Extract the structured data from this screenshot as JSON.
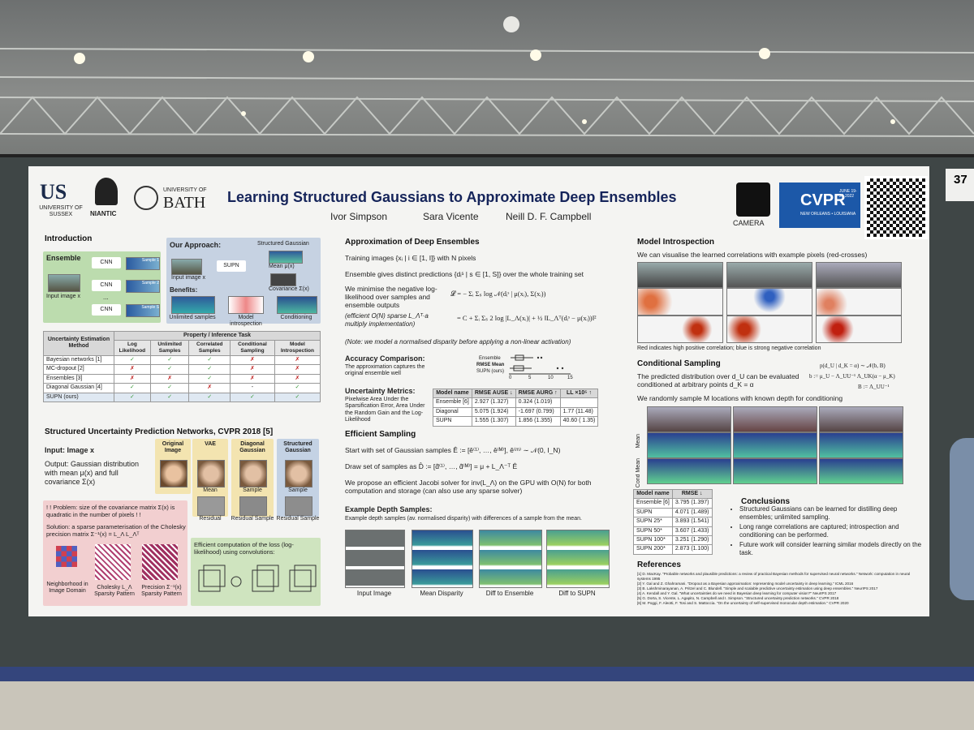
{
  "header": {
    "logos": {
      "sussex_mark": "US",
      "sussex": "UNIVERSITY OF SUSSEX",
      "niantic": "NIANTIC",
      "bath_top": "UNIVERSITY OF",
      "bath": "BATH",
      "camera": "CAMERA",
      "cvpr": "CVPR",
      "cvpr_date": "JUNE 19-24 2022",
      "cvpr_place": "NEW ORLEANS • LOUISIANA"
    },
    "title": "Learning Structured Gaussians to Approximate Deep Ensembles",
    "authors": [
      "Ivor Simpson",
      "Sara Vicente",
      "Neill D. F. Campbell"
    ],
    "booth": "37"
  },
  "introduction": {
    "heading": "Introduction",
    "ensemble": {
      "label": "Ensemble",
      "cnn": [
        "CNN",
        "CNN",
        "CNN"
      ],
      "samples": [
        "Sample 1",
        "Sample 2",
        "Sample S"
      ],
      "dots": "...",
      "input": "Input image x"
    },
    "approach": {
      "label": "Our Approach:",
      "structured": "Structured  Gaussian",
      "input": "Input image x",
      "supn": "SUPN",
      "mean": "Mean μ(x)",
      "cov": "Covariance Σ(x)",
      "benefits": "Benefits:",
      "items": [
        "Unlimited samples",
        "Model introspection",
        "Conditioning"
      ]
    },
    "table": {
      "corner": "Uncertainty Estimation Method",
      "group": "Property / Inference Task",
      "columns": [
        "Log Likelihood",
        "Unlimited Samples",
        "Correlated Samples",
        "Conditional Sampling",
        "Model Introspection"
      ],
      "rows": [
        [
          "Bayesian networks [1]",
          "✓",
          "✓",
          "✓",
          "✗",
          "✗"
        ],
        [
          "MC-dropout [2]",
          "✗",
          "✓",
          "✓",
          "✗",
          "✗"
        ],
        [
          "Ensembles [3]",
          "✗",
          "✗",
          "✓",
          "✗",
          "✗"
        ],
        [
          "Diagonal Gaussian [4]",
          "✓",
          "✓",
          "✗",
          "-",
          "✓"
        ],
        [
          "SUPN (ours)",
          "✓",
          "✓",
          "✓",
          "✓",
          "✓"
        ]
      ]
    }
  },
  "supn": {
    "heading": "Structured Uncertainty Prediction Networks, CVPR 2018 [5]",
    "input": "Input: Image x",
    "output": "Output: Gaussian distribution with mean μ(x) and full covariance Σ(x)",
    "columns": [
      "Original Image",
      "VAE",
      "Diagonal Gaussian",
      "Structured Gaussian"
    ],
    "row1": [
      "Mean",
      "Sample",
      "Sample"
    ],
    "row2": [
      "Residual",
      "Residual Sample",
      "Residual Sample"
    ],
    "problem": "! ! Problem: size of the covariance matrix Σ(x) is quadratic in the number of pixels ! !",
    "solution": "Solution: a sparse parameterisation of the Cholesky precision matrix Σ⁻¹(x) = L_Λ L_Λᵀ",
    "patterns": [
      "Neighborhood in Image Domain",
      "Cholesky L_Λ Sparsity Pattern",
      "Precision Σ⁻¹(x) Sparsity Pattern"
    ],
    "efficient": "Efficient computation of the loss (log-likelihood) using convolutions:"
  },
  "approximation": {
    "heading": "Approximation of Deep Ensembles",
    "lines": [
      "Training images {xᵢ | i ∈ [1, I]} with N pixels",
      "Ensemble gives distinct predictions {dᵢˢ | s ∈ [1, S]} over the whole training set",
      "We minimise the negative log-likelihood over samples and ensemble outputs",
      "(efficient O(N) sparse L_Λᵀ·a multiply implementation)"
    ],
    "eq1": "𝓛 = − Σᵢ Σₛ log 𝒩(dᵢˢ | μ(xᵢ), Σ(xᵢ))",
    "eq2": "= C + Σᵢ Σₛ 2 log |L_Λ(xᵢ)| + ½ ‖L_Λᵀ(dᵢˢ − μ(xᵢ))‖²",
    "note": "(Note: we model a normalised disparity before applying a non-linear activation)",
    "accuracy_heading": "Accuracy Comparison:",
    "accuracy_text": "The approximation captures the original ensemble well",
    "box_labels": [
      "Ensemble",
      "RMSE Mean",
      "SUPN (ours)"
    ],
    "box_ticks": [
      0,
      5,
      10,
      15
    ],
    "metrics_heading": "Uncertainty Metrics:",
    "metrics_text": "Pixelwise Area Under the Sparsification Error, Area Under the Random Gain and the Log-Likelihood",
    "metrics_table": {
      "columns": [
        "Model name",
        "RMSE AUSE ↓",
        "RMSE AURG ↑",
        "LL ×10⁵ ↑"
      ],
      "rows": [
        [
          "Ensemble [6]",
          "2.927 (1.327)",
          "0.324 (1.019)"
        ],
        [
          "Diagonal",
          "5.075 (1.924)",
          "-1.697 (0.799)",
          "1.77 (11.48)"
        ],
        [
          "SUPN",
          "1.555 (1.307)",
          "1.856 (1.355)",
          "40.60 ( 1.35)"
        ]
      ]
    }
  },
  "sampling": {
    "heading": "Efficient Sampling",
    "lines": [
      "Start with set of Gaussian samples Ê := [ê⁽¹⁾, …, ê⁽ᴹ⁾], ê⁽ᵐ⁾ ∼ 𝒩(0, I_N)",
      "Draw set of samples as D̂ := [d̂⁽¹⁾, …, d̂⁽ᴹ⁾] = μ + L_Λ⁻ᵀ Ê",
      "We propose an efficient Jacobi solver for inv(L_Λ) on the GPU with O(N) for both computation and storage (can also use any sparse solver)"
    ],
    "examples_heading": "Example Depth Samples:",
    "examples_text": "Example depth samples (av. normalised disparity) with differences of a sample from the mean.",
    "captions": [
      "Input Image",
      "Mean Disparity",
      "Diff to Ensemble",
      "Diff to SUPN"
    ]
  },
  "introspection": {
    "heading": "Model Introspection",
    "text": "We can visualise the learned correlations with example pixels (red-crosses)",
    "caption": "Red indicates high positive correlation; blue is strong negative correlation"
  },
  "conditional": {
    "heading": "Conditional Sampling",
    "text1": "The predicted distribution over d_U can be evaluated conditioned at arbitrary points d_K = α",
    "eqs": [
      "p(d_U | d_K = α) ∼ 𝒩(b, B)",
      "b := μ_U − Λ_UU⁻¹ Λ_UK(α − μ_K)",
      "B := Λ_UU⁻¹"
    ],
    "text2": "We randomly sample M locations with known depth for conditioning",
    "row_labels": [
      "Mean",
      "Cond Mean"
    ],
    "table": {
      "columns": [
        "Model name",
        "RMSE ↓"
      ],
      "rows": [
        [
          "Ensemble [6]",
          "3.795 (1.397)"
        ],
        [
          "SUPN",
          "4.071 (1.489)"
        ],
        [
          "SUPN 25*",
          "3.893 (1.541)"
        ],
        [
          "SUPN 50*",
          "3.607 (1.433)"
        ],
        [
          "SUPN 100*",
          "3.251 (1.290)"
        ],
        [
          "SUPN 200*",
          "2.873 (1.100)"
        ]
      ]
    }
  },
  "conclusions": {
    "heading": "Conclusions",
    "items": [
      "Structured Gaussians can be learned for distilling deep ensembles; unlimited sampling.",
      "Long range correlations are captured; introspection and conditioning can be performed.",
      "Future work will consider learning similar models directly on the task."
    ]
  },
  "references": {
    "heading": "References",
    "items": [
      "[1] D. MacKay. \"Probable networks and plausible predictions: a review of practical Bayesian methods for supervised neural networks.\" Network: computation in neural systems 1995",
      "[2] Y. Gal and Z. Ghahramani. \"Dropout as a Bayesian approximation: representing model uncertainty in deep learning.\" ICML 2016",
      "[3] B. Lakshminarayanan, A. Pritzel and C. Blundell. \"Simple and scalable predictive uncertainty estimation using deep ensembles.\" NeurIPS 2017",
      "[4] A. Kendall and Y. Gal. \"What uncertainties do we need in Bayesian deep learning for computer vision?\" NeurIPS 2017",
      "[5] G. Dorta, S. Vicente, L. Agapito, N. Campbell and I. Simpson. \"Structured uncertainty prediction networks.\" CVPR 2018",
      "[6] M. Poggi, F. Aleotti, F. Tosi and S. Mattoccia. \"On the uncertainty of self-supervised monocular depth estimation.\" CVPR 2020"
    ]
  }
}
